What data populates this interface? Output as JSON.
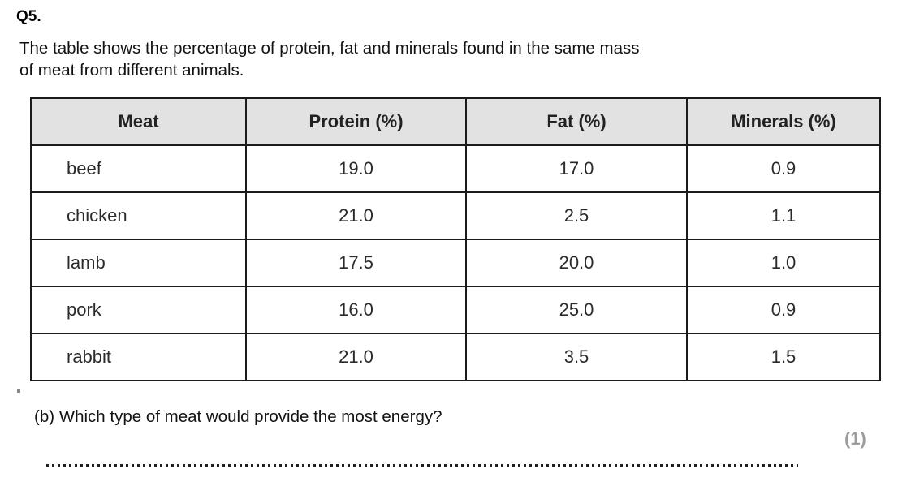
{
  "page": {
    "question_number": "Q5.",
    "intro_line1": "The table shows the percentage of protein, fat and minerals found in the same mass",
    "intro_line2": "of meat from different animals.",
    "sub_question": "(b) Which type of meat would provide the most energy?",
    "marks": "(1)"
  },
  "table": {
    "headers": [
      "Meat",
      "Protein (%)",
      "Fat (%)",
      "Minerals (%)"
    ],
    "rows": [
      [
        "beef",
        "19.0",
        "17.0",
        "0.9"
      ],
      [
        "chicken",
        "21.0",
        "2.5",
        "1.1"
      ],
      [
        "lamb",
        "17.5",
        "20.0",
        "1.0"
      ],
      [
        "pork",
        "16.0",
        "25.0",
        "0.9"
      ],
      [
        "rabbit",
        "21.0",
        "3.5",
        "1.5"
      ]
    ]
  },
  "colors": {
    "header_background": "#e2e2e2",
    "table_border": "#1b1b1b",
    "body_text": "#121212",
    "marks_gray": "#9c9c9c"
  }
}
